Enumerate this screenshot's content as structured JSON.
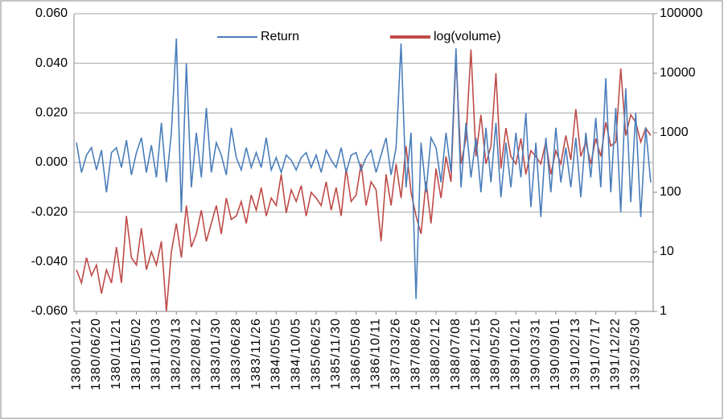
{
  "chart_data": {
    "type": "line",
    "categories": [
      "1380/01/21",
      null,
      null,
      null,
      "1380/06/20",
      null,
      null,
      null,
      "1380/11/21",
      null,
      null,
      null,
      "1381/05/02",
      null,
      null,
      null,
      "1381/10/03",
      null,
      null,
      null,
      "1382/03/13",
      null,
      null,
      null,
      "1382/08/12",
      null,
      null,
      null,
      "1383/01/30",
      null,
      null,
      null,
      "1383/06/28",
      null,
      null,
      null,
      "1383/11/26",
      null,
      null,
      null,
      "1384/05/05",
      null,
      null,
      null,
      "1384/10/05",
      null,
      null,
      null,
      "1385/06/25",
      null,
      null,
      null,
      "1385/11/30",
      null,
      null,
      null,
      "1386/05/08",
      null,
      null,
      null,
      "1386/10/11",
      null,
      null,
      null,
      "1387/03/26",
      null,
      null,
      null,
      "1387/08/26",
      null,
      null,
      null,
      "1388/02/12",
      null,
      null,
      null,
      "1388/07/08",
      null,
      null,
      null,
      "1388/12/15",
      null,
      null,
      null,
      "1389/05/20",
      null,
      null,
      null,
      "1389/10/21",
      null,
      null,
      null,
      "1390/03/31",
      null,
      null,
      null,
      "1390/09/01",
      null,
      null,
      null,
      "1391/02/13",
      null,
      null,
      null,
      "1391/07/17",
      null,
      null,
      null,
      "1391/12/22",
      null,
      null,
      null,
      "1392/05/30",
      null,
      null,
      null
    ],
    "series": [
      {
        "name": "Return",
        "color": "#4a7ebb",
        "values": [
          0.008,
          -0.004,
          0.003,
          0.006,
          -0.003,
          0.005,
          -0.012,
          0.004,
          0.006,
          -0.002,
          0.009,
          -0.005,
          0.004,
          0.01,
          -0.004,
          0.007,
          -0.006,
          0.016,
          -0.008,
          0.012,
          0.05,
          -0.02,
          0.04,
          -0.01,
          0.012,
          -0.006,
          0.022,
          -0.004,
          0.008,
          0.003,
          -0.005,
          0.014,
          0.002,
          -0.003,
          0.006,
          -0.002,
          0.004,
          -0.002,
          0.01,
          -0.003,
          0.002,
          -0.004,
          0.003,
          0.001,
          -0.003,
          0.002,
          0.004,
          -0.002,
          0.003,
          -0.004,
          0.005,
          0.001,
          -0.002,
          0.006,
          -0.004,
          0.003,
          0.004,
          -0.003,
          0.002,
          0.005,
          -0.004,
          0.003,
          0.01,
          -0.005,
          0.006,
          0.048,
          -0.01,
          0.012,
          -0.055,
          0.008,
          -0.012,
          0.01,
          0.006,
          -0.008,
          0.012,
          -0.004,
          0.046,
          -0.01,
          0.016,
          -0.006,
          0.01,
          -0.012,
          0.014,
          -0.008,
          0.016,
          -0.014,
          0.008,
          -0.01,
          0.012,
          -0.006,
          0.02,
          -0.018,
          0.008,
          -0.022,
          0.01,
          -0.012,
          0.014,
          -0.008,
          0.006,
          -0.01,
          0.01,
          -0.014,
          0.012,
          -0.006,
          0.018,
          -0.01,
          0.034,
          -0.012,
          0.022,
          -0.02,
          0.03,
          -0.016,
          0.02,
          -0.022,
          0.014,
          -0.008
        ]
      },
      {
        "name": "log(volume)",
        "color": "#be4b48",
        "axis": "y2",
        "values": [
          5,
          3,
          8,
          4,
          6,
          2,
          5,
          3,
          12,
          3,
          40,
          8,
          6,
          25,
          5,
          10,
          6,
          15,
          1,
          10,
          30,
          8,
          60,
          12,
          20,
          50,
          15,
          30,
          60,
          20,
          80,
          35,
          40,
          70,
          30,
          90,
          50,
          120,
          40,
          80,
          60,
          200,
          45,
          110,
          70,
          130,
          40,
          100,
          80,
          60,
          150,
          50,
          120,
          40,
          250,
          70,
          90,
          300,
          60,
          150,
          110,
          15,
          200,
          60,
          300,
          80,
          600,
          100,
          40,
          20,
          150,
          30,
          250,
          80,
          400,
          150,
          20000,
          300,
          800,
          25000,
          400,
          2000,
          300,
          600,
          10000,
          250,
          1200,
          400,
          300,
          800,
          200,
          500,
          400,
          300,
          700,
          200,
          500,
          300,
          900,
          350,
          2500,
          400,
          700,
          300,
          800,
          400,
          1500,
          600,
          700,
          12000,
          900,
          2000,
          1500,
          700,
          1200,
          900
        ]
      }
    ],
    "ylim": [
      -0.06,
      0.06
    ],
    "yticks": [
      {
        "value": -0.06,
        "label": "-0.060"
      },
      {
        "value": -0.04,
        "label": "-0.040"
      },
      {
        "value": -0.02,
        "label": "-0.020"
      },
      {
        "value": 0,
        "label": "0.000"
      },
      {
        "value": 0.02,
        "label": "0.020"
      },
      {
        "value": 0.04,
        "label": "0.040"
      },
      {
        "value": 0.06,
        "label": "0.060"
      }
    ],
    "y2lim": [
      1,
      100000
    ],
    "y2ticks": [
      1,
      10,
      100,
      1000,
      10000,
      100000
    ],
    "y2_log": true,
    "grid": true,
    "legend": "top"
  }
}
